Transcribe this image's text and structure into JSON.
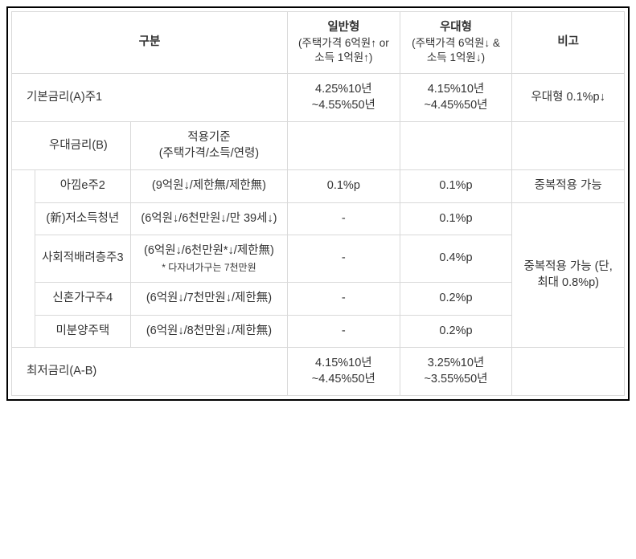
{
  "header": {
    "gubun": "구분",
    "col_general_title": "일반형",
    "col_general_sub": "(주택가격 6억원↑ or 소득 1억원↑)",
    "col_pref_title": "우대형",
    "col_pref_sub": "(주택가격 6억원↓ & 소득 1억원↓)",
    "col_note": "비고"
  },
  "row_base": {
    "label": "기본금리(A)주1",
    "general": "4.25%10년 ~4.55%50년",
    "pref": "4.15%10년 ~4.45%50년",
    "note": "우대형 0.1%p↓"
  },
  "row_b_header": {
    "label": "우대금리(B)",
    "criteria": "적용기준\n(주택가격/소득/연령)"
  },
  "items": [
    {
      "name": "아낌e주2",
      "criteria": "(9억원↓/제한無/제한無)",
      "general": "0.1%p",
      "pref": "0.1%p",
      "note": "중복적용 가능"
    },
    {
      "name": "(新)저소득청년",
      "criteria": "(6억원↓/6천만원↓/만 39세↓)",
      "general": "-",
      "pref": "0.1%p"
    },
    {
      "name": "사회적배려층주3",
      "criteria": "(6억원↓/6천만원*↓/제한無)",
      "criteria_note": "* 다자녀가구는 7천만원",
      "general": "-",
      "pref": "0.4%p"
    },
    {
      "name": "신혼가구주4",
      "criteria": "(6억원↓/7천만원↓/제한無)",
      "general": "-",
      "pref": "0.2%p"
    },
    {
      "name": "미분양주택",
      "criteria": "(6억원↓/8천만원↓/제한無)",
      "general": "-",
      "pref": "0.2%p"
    }
  ],
  "merged_note": "중복적용 가능 (단, 최대 0.8%p)",
  "row_min": {
    "label": "최저금리(A-B)",
    "general": "4.15%10년 ~4.45%50년",
    "pref": "3.25%10년 ~3.55%50년"
  }
}
